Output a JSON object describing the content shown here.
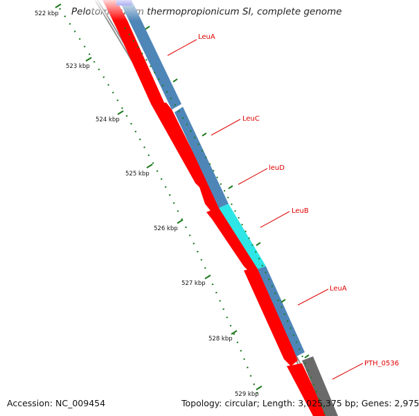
{
  "header": {
    "title": "Pelotomaculum thermopropionicum SI, complete genome"
  },
  "footer": {
    "accession": "Accession: NC_009454",
    "stats": "Topology: circular; Length: 3,025,375 bp; Genes: 2,975"
  },
  "ruler": {
    "ticks": [
      {
        "label": "522 kbp"
      },
      {
        "label": "523 kbp"
      },
      {
        "label": "524 kbp"
      },
      {
        "label": "525 kbp"
      },
      {
        "label": "526 kbp"
      },
      {
        "label": "527 kbp"
      },
      {
        "label": "528 kbp"
      },
      {
        "label": "529 kbp"
      }
    ]
  },
  "genes": [
    {
      "label": "LeuA"
    },
    {
      "label": "LeuC"
    },
    {
      "label": "leuD"
    },
    {
      "label": "LeuB"
    },
    {
      "label": "LeuA"
    },
    {
      "label": "PTH_0536"
    }
  ],
  "colors": {
    "forward_feature": "#4f86b8",
    "forward_feature_alt": "#2ee6e6",
    "pseudo_feature": "#6a6a6a",
    "cds": "#ff0000",
    "backbone": "#8a8a8a",
    "ruler_tick": "#1e7a1e",
    "label": "#e00000",
    "top_feature": "#2a2ae0"
  }
}
